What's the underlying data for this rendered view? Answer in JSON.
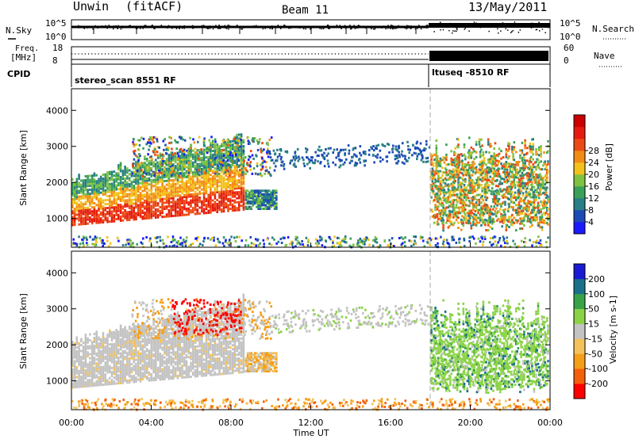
{
  "header": {
    "radar": "Unwin",
    "mode": "(fitACF)",
    "beam": "Beam 11",
    "date": "13/May/2011"
  },
  "panels": {
    "sky": {
      "label": "N.Sky",
      "tick_top": "10^5",
      "tick_bottom": "10^0",
      "right_label": "N.Search",
      "right_tick_top": "10^5",
      "right_tick_bottom": "10^0"
    },
    "freq": {
      "label_line1": "Freq.",
      "label_line2": "[MHz]",
      "tick_top": "18",
      "tick_bottom": "8",
      "right_label": "Nave",
      "right_tick_top": "60",
      "right_tick_bottom": "0"
    },
    "cpid": {
      "label": "CPID",
      "seg1": "stereo_scan 8551 RF",
      "seg2": "ltuseq -8510 RF"
    }
  },
  "chart_data": [
    {
      "type": "heatmap",
      "name": "power",
      "ylabel": "Slant Range [km]",
      "yticks": [
        1000,
        2000,
        3000,
        4000
      ],
      "ylim": [
        200,
        4600
      ],
      "xlim_hours": [
        0,
        24
      ],
      "colorbar": {
        "label": "Power [dB]",
        "ticks": [
          "4",
          "8",
          "12",
          "16",
          "20",
          "24",
          "28"
        ],
        "colors": [
          "#1a1aff",
          "#1c4bb5",
          "#2a7e86",
          "#3aa05a",
          "#7fc241",
          "#f2c21b",
          "#f38b17",
          "#ec4a14",
          "#e61b10",
          "#cc0000"
        ]
      }
    },
    {
      "type": "heatmap",
      "name": "velocity",
      "ylabel": "Slant Range [km]",
      "yticks": [
        1000,
        2000,
        3000,
        4000
      ],
      "ylim": [
        200,
        4600
      ],
      "xlim_hours": [
        0,
        24
      ],
      "colorbar": {
        "label": "Velocity [m s-1]",
        "ticks": [
          "-200",
          "-100",
          "-50",
          "-15",
          "15",
          "50",
          "100",
          "200"
        ],
        "colors": [
          "#ff0000",
          "#f55e0a",
          "#f59e17",
          "#f4c25a",
          "#c3c3c3",
          "#8ad346",
          "#39a148",
          "#1c6f8a",
          "#1a1ad5"
        ]
      },
      "xticks": [
        "00:00",
        "04:00",
        "08:00",
        "12:00",
        "16:00",
        "20:00",
        "00:00"
      ],
      "xlabel": "Time UT"
    }
  ]
}
